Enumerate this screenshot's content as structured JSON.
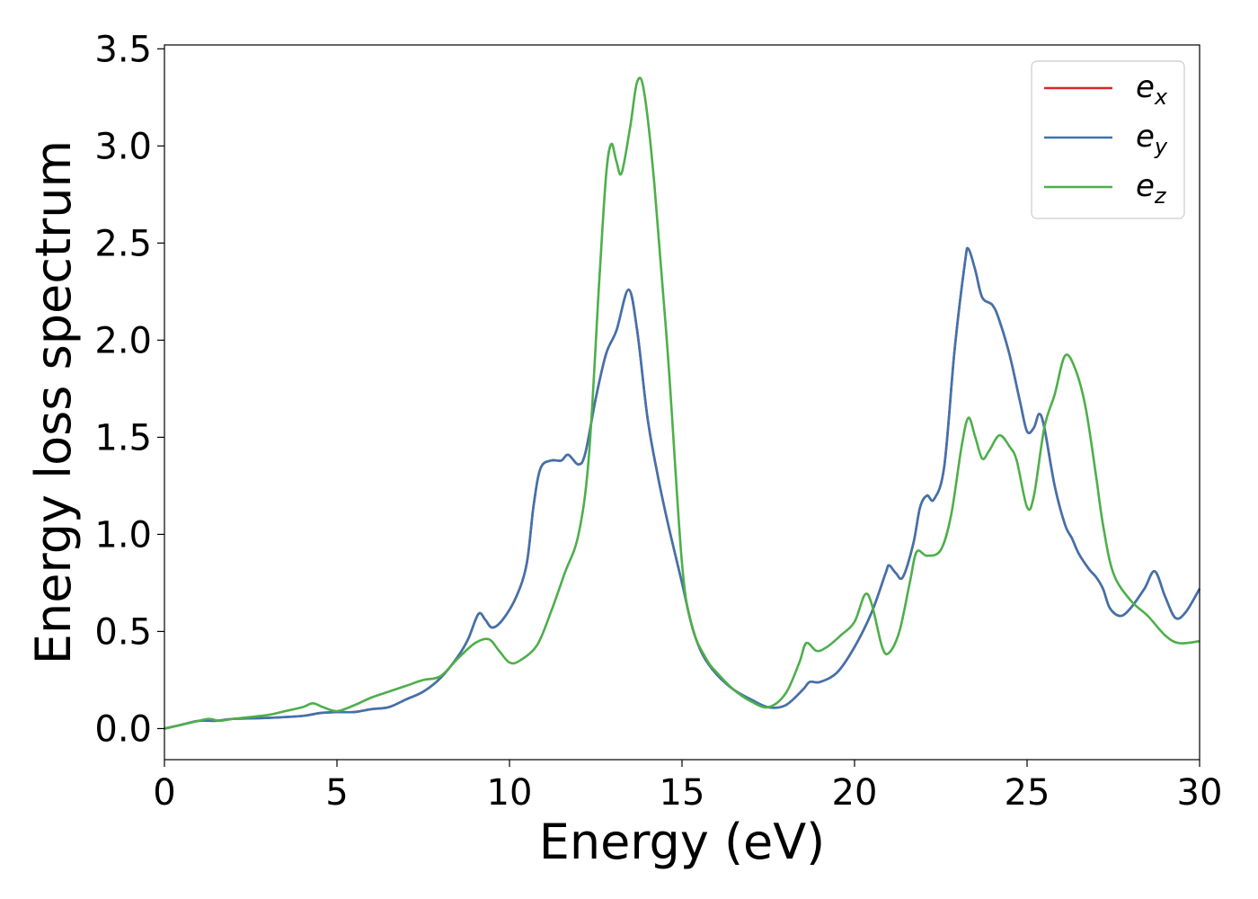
{
  "chart_data": {
    "type": "line",
    "xlabel": "Energy (eV)",
    "ylabel": "Energy loss spectrum",
    "xlim": [
      0,
      30
    ],
    "ylim": [
      -0.16,
      3.52
    ],
    "xticks": [
      0,
      5,
      10,
      15,
      20,
      25,
      30
    ],
    "yticks": [
      0.0,
      0.5,
      1.0,
      1.5,
      2.0,
      2.5,
      3.0,
      3.5
    ],
    "xtick_labels": [
      "0",
      "5",
      "10",
      "15",
      "20",
      "25",
      "30"
    ],
    "ytick_labels": [
      "0.0",
      "0.5",
      "1.0",
      "1.5",
      "2.0",
      "2.5",
      "3.0",
      "3.5"
    ],
    "grid": false,
    "legend_position": "top-right",
    "series": [
      {
        "name": "e",
        "sub": "x",
        "color": "#d62728",
        "points": [
          [
            0,
            0
          ],
          [
            0.5,
            0.02
          ],
          [
            1,
            0.04
          ],
          [
            1.5,
            0.04
          ],
          [
            2,
            0.05
          ],
          [
            3,
            0.055
          ],
          [
            4,
            0.065
          ],
          [
            4.5,
            0.08
          ],
          [
            5,
            0.085
          ],
          [
            5.5,
            0.085
          ],
          [
            6,
            0.1
          ],
          [
            6.5,
            0.11
          ],
          [
            7,
            0.15
          ],
          [
            7.5,
            0.19
          ],
          [
            8,
            0.26
          ],
          [
            8.5,
            0.37
          ],
          [
            8.8,
            0.46
          ],
          [
            9.1,
            0.59
          ],
          [
            9.3,
            0.56
          ],
          [
            9.5,
            0.52
          ],
          [
            9.8,
            0.56
          ],
          [
            10.2,
            0.68
          ],
          [
            10.5,
            0.85
          ],
          [
            10.7,
            1.15
          ],
          [
            10.9,
            1.34
          ],
          [
            11.2,
            1.38
          ],
          [
            11.5,
            1.38
          ],
          [
            11.7,
            1.41
          ],
          [
            12,
            1.36
          ],
          [
            12.2,
            1.42
          ],
          [
            12.5,
            1.7
          ],
          [
            12.8,
            1.93
          ],
          [
            13.1,
            2.05
          ],
          [
            13.45,
            2.26
          ],
          [
            13.7,
            2.05
          ],
          [
            14,
            1.6
          ],
          [
            14.3,
            1.3
          ],
          [
            14.6,
            1.05
          ],
          [
            15,
            0.75
          ],
          [
            15.3,
            0.52
          ],
          [
            15.6,
            0.38
          ],
          [
            16,
            0.28
          ],
          [
            16.5,
            0.2
          ],
          [
            17,
            0.15
          ],
          [
            17.5,
            0.11
          ],
          [
            18,
            0.12
          ],
          [
            18.5,
            0.2
          ],
          [
            18.7,
            0.24
          ],
          [
            19,
            0.24
          ],
          [
            19.5,
            0.29
          ],
          [
            20,
            0.42
          ],
          [
            20.5,
            0.6
          ],
          [
            20.9,
            0.8
          ],
          [
            21,
            0.84
          ],
          [
            21.2,
            0.8
          ],
          [
            21.4,
            0.78
          ],
          [
            21.7,
            0.95
          ],
          [
            21.9,
            1.14
          ],
          [
            22.1,
            1.2
          ],
          [
            22.3,
            1.18
          ],
          [
            22.6,
            1.35
          ],
          [
            22.9,
            1.95
          ],
          [
            23.2,
            2.4
          ],
          [
            23.3,
            2.47
          ],
          [
            23.5,
            2.36
          ],
          [
            23.7,
            2.22
          ],
          [
            24,
            2.18
          ],
          [
            24.2,
            2.1
          ],
          [
            24.5,
            1.92
          ],
          [
            24.8,
            1.68
          ],
          [
            25,
            1.53
          ],
          [
            25.2,
            1.55
          ],
          [
            25.35,
            1.62
          ],
          [
            25.5,
            1.55
          ],
          [
            25.8,
            1.25
          ],
          [
            26.1,
            1.05
          ],
          [
            26.3,
            0.98
          ],
          [
            26.5,
            0.9
          ],
          [
            26.8,
            0.82
          ],
          [
            27,
            0.78
          ],
          [
            27.2,
            0.72
          ],
          [
            27.4,
            0.62
          ],
          [
            27.7,
            0.58
          ],
          [
            28,
            0.62
          ],
          [
            28.4,
            0.72
          ],
          [
            28.7,
            0.81
          ],
          [
            29,
            0.68
          ],
          [
            29.3,
            0.57
          ],
          [
            29.6,
            0.6
          ],
          [
            30,
            0.72
          ]
        ]
      },
      {
        "name": "e",
        "sub": "y",
        "color": "#3f73ad",
        "points": [
          [
            0,
            0
          ],
          [
            0.5,
            0.02
          ],
          [
            1,
            0.04
          ],
          [
            1.5,
            0.04
          ],
          [
            2,
            0.05
          ],
          [
            3,
            0.055
          ],
          [
            4,
            0.065
          ],
          [
            4.5,
            0.08
          ],
          [
            5,
            0.085
          ],
          [
            5.5,
            0.085
          ],
          [
            6,
            0.1
          ],
          [
            6.5,
            0.11
          ],
          [
            7,
            0.15
          ],
          [
            7.5,
            0.19
          ],
          [
            8,
            0.26
          ],
          [
            8.5,
            0.37
          ],
          [
            8.8,
            0.46
          ],
          [
            9.1,
            0.59
          ],
          [
            9.3,
            0.56
          ],
          [
            9.5,
            0.52
          ],
          [
            9.8,
            0.56
          ],
          [
            10.2,
            0.68
          ],
          [
            10.5,
            0.85
          ],
          [
            10.7,
            1.15
          ],
          [
            10.9,
            1.34
          ],
          [
            11.2,
            1.38
          ],
          [
            11.5,
            1.38
          ],
          [
            11.7,
            1.41
          ],
          [
            12,
            1.36
          ],
          [
            12.2,
            1.42
          ],
          [
            12.5,
            1.7
          ],
          [
            12.8,
            1.93
          ],
          [
            13.1,
            2.05
          ],
          [
            13.45,
            2.26
          ],
          [
            13.7,
            2.05
          ],
          [
            14,
            1.6
          ],
          [
            14.3,
            1.3
          ],
          [
            14.6,
            1.05
          ],
          [
            15,
            0.75
          ],
          [
            15.3,
            0.52
          ],
          [
            15.6,
            0.38
          ],
          [
            16,
            0.28
          ],
          [
            16.5,
            0.2
          ],
          [
            17,
            0.15
          ],
          [
            17.5,
            0.11
          ],
          [
            18,
            0.12
          ],
          [
            18.5,
            0.2
          ],
          [
            18.7,
            0.24
          ],
          [
            19,
            0.24
          ],
          [
            19.5,
            0.29
          ],
          [
            20,
            0.42
          ],
          [
            20.5,
            0.6
          ],
          [
            20.9,
            0.8
          ],
          [
            21,
            0.84
          ],
          [
            21.2,
            0.8
          ],
          [
            21.4,
            0.78
          ],
          [
            21.7,
            0.95
          ],
          [
            21.9,
            1.14
          ],
          [
            22.1,
            1.2
          ],
          [
            22.3,
            1.18
          ],
          [
            22.6,
            1.35
          ],
          [
            22.9,
            1.95
          ],
          [
            23.2,
            2.4
          ],
          [
            23.3,
            2.47
          ],
          [
            23.5,
            2.36
          ],
          [
            23.7,
            2.22
          ],
          [
            24,
            2.18
          ],
          [
            24.2,
            2.1
          ],
          [
            24.5,
            1.92
          ],
          [
            24.8,
            1.68
          ],
          [
            25,
            1.53
          ],
          [
            25.2,
            1.55
          ],
          [
            25.35,
            1.62
          ],
          [
            25.5,
            1.55
          ],
          [
            25.8,
            1.25
          ],
          [
            26.1,
            1.05
          ],
          [
            26.3,
            0.98
          ],
          [
            26.5,
            0.9
          ],
          [
            26.8,
            0.82
          ],
          [
            27,
            0.78
          ],
          [
            27.2,
            0.72
          ],
          [
            27.4,
            0.62
          ],
          [
            27.7,
            0.58
          ],
          [
            28,
            0.62
          ],
          [
            28.4,
            0.72
          ],
          [
            28.7,
            0.81
          ],
          [
            29,
            0.68
          ],
          [
            29.3,
            0.57
          ],
          [
            29.6,
            0.6
          ],
          [
            30,
            0.72
          ]
        ]
      },
      {
        "name": "e",
        "sub": "z",
        "color": "#4daf4a",
        "points": [
          [
            0,
            0
          ],
          [
            0.5,
            0.02
          ],
          [
            1,
            0.04
          ],
          [
            1.3,
            0.05
          ],
          [
            1.6,
            0.04
          ],
          [
            2,
            0.05
          ],
          [
            3,
            0.07
          ],
          [
            3.5,
            0.09
          ],
          [
            4,
            0.11
          ],
          [
            4.3,
            0.13
          ],
          [
            4.6,
            0.11
          ],
          [
            5,
            0.09
          ],
          [
            5.5,
            0.12
          ],
          [
            6,
            0.16
          ],
          [
            6.5,
            0.19
          ],
          [
            7,
            0.22
          ],
          [
            7.5,
            0.25
          ],
          [
            8,
            0.27
          ],
          [
            8.5,
            0.36
          ],
          [
            9,
            0.44
          ],
          [
            9.4,
            0.46
          ],
          [
            9.7,
            0.4
          ],
          [
            10,
            0.34
          ],
          [
            10.3,
            0.35
          ],
          [
            10.8,
            0.43
          ],
          [
            11.2,
            0.6
          ],
          [
            11.6,
            0.8
          ],
          [
            12,
            1.0
          ],
          [
            12.3,
            1.4
          ],
          [
            12.6,
            2.3
          ],
          [
            12.8,
            2.85
          ],
          [
            12.95,
            3.01
          ],
          [
            13.1,
            2.92
          ],
          [
            13.25,
            2.86
          ],
          [
            13.5,
            3.1
          ],
          [
            13.7,
            3.33
          ],
          [
            13.9,
            3.28
          ],
          [
            14.2,
            2.8
          ],
          [
            14.6,
            1.9
          ],
          [
            15,
            0.85
          ],
          [
            15.3,
            0.52
          ],
          [
            15.7,
            0.36
          ],
          [
            16,
            0.29
          ],
          [
            16.5,
            0.2
          ],
          [
            17,
            0.14
          ],
          [
            17.5,
            0.11
          ],
          [
            18,
            0.18
          ],
          [
            18.4,
            0.34
          ],
          [
            18.6,
            0.44
          ],
          [
            18.9,
            0.4
          ],
          [
            19.2,
            0.42
          ],
          [
            19.6,
            0.48
          ],
          [
            20,
            0.55
          ],
          [
            20.3,
            0.69
          ],
          [
            20.5,
            0.64
          ],
          [
            20.8,
            0.42
          ],
          [
            21,
            0.39
          ],
          [
            21.3,
            0.5
          ],
          [
            21.6,
            0.75
          ],
          [
            21.8,
            0.91
          ],
          [
            22.1,
            0.89
          ],
          [
            22.5,
            0.92
          ],
          [
            22.8,
            1.1
          ],
          [
            23.1,
            1.45
          ],
          [
            23.3,
            1.6
          ],
          [
            23.5,
            1.5
          ],
          [
            23.7,
            1.39
          ],
          [
            23.9,
            1.43
          ],
          [
            24.2,
            1.51
          ],
          [
            24.5,
            1.45
          ],
          [
            24.7,
            1.38
          ],
          [
            25,
            1.14
          ],
          [
            25.2,
            1.2
          ],
          [
            25.5,
            1.55
          ],
          [
            25.8,
            1.72
          ],
          [
            26.1,
            1.92
          ],
          [
            26.4,
            1.85
          ],
          [
            26.7,
            1.65
          ],
          [
            27,
            1.3
          ],
          [
            27.2,
            1.05
          ],
          [
            27.5,
            0.8
          ],
          [
            28,
            0.66
          ],
          [
            28.5,
            0.58
          ],
          [
            29,
            0.48
          ],
          [
            29.4,
            0.44
          ],
          [
            30,
            0.45
          ]
        ]
      }
    ]
  }
}
